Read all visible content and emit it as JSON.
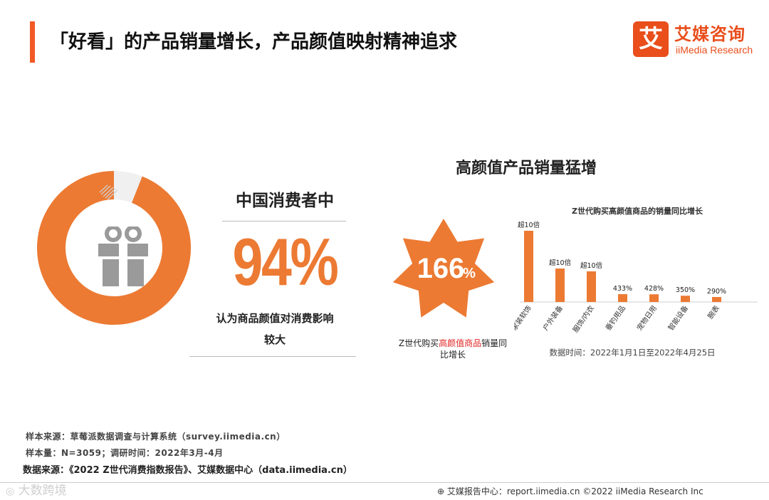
{
  "header": {
    "title": "「好看」的产品销量增长，产品颜值映射精神追求",
    "logo_badge": "艾",
    "logo_cn": "艾媒咨询",
    "logo_en": "iiMedia Research"
  },
  "left_stat": {
    "heading": "中国消费者中",
    "value": "94%",
    "description": "认为商品颜值对消费影响较大",
    "ring_fraction": 0.94,
    "ring_color": "#ec7a33"
  },
  "right_section": {
    "title": "高颜值产品销量猛增",
    "star_value": "166",
    "star_unit": "%",
    "star_caption_pre": "Z世代购买",
    "star_caption_highlight": "高颜值商品",
    "star_caption_post": "销量同比增长"
  },
  "chart_data": {
    "type": "bar",
    "title": "Z世代购买高颜值商品的销量同比增长",
    "categories": [
      "家装软饰",
      "户外装备",
      "服饰/内衣",
      "垂钓用品",
      "宠物日用",
      "智能设备",
      "腕表"
    ],
    "values": [
      1000,
      1000,
      1000,
      433,
      428,
      350,
      290
    ],
    "display_values": [
      1000,
      470,
      430,
      110,
      108,
      88,
      70
    ],
    "labels": [
      "超10倍",
      "超10倍",
      "超10倍",
      "433%",
      "428%",
      "350%",
      "290%"
    ],
    "note": "数据时间：2022年1月1日至2022年4月25日",
    "bar_color": "#ec7a33"
  },
  "footer": {
    "source1": "样本来源：草莓派数据调查与计算系统（survey.iimedia.cn）",
    "source2": "样本量：N=3059；调研时间：2022年3月-4月",
    "source3": "数据来源：《2022 Z世代消费指数报告》、艾媒数据中心（data.iimedia.cn）",
    "watermark": "大数跨境",
    "copyright": "艾媒报告中心：report.iimedia.cn  ©2022  iiMedia Research  Inc"
  },
  "colors": {
    "accent": "#f15a24",
    "orange": "#ec7a33",
    "highlight": "#e02020"
  }
}
